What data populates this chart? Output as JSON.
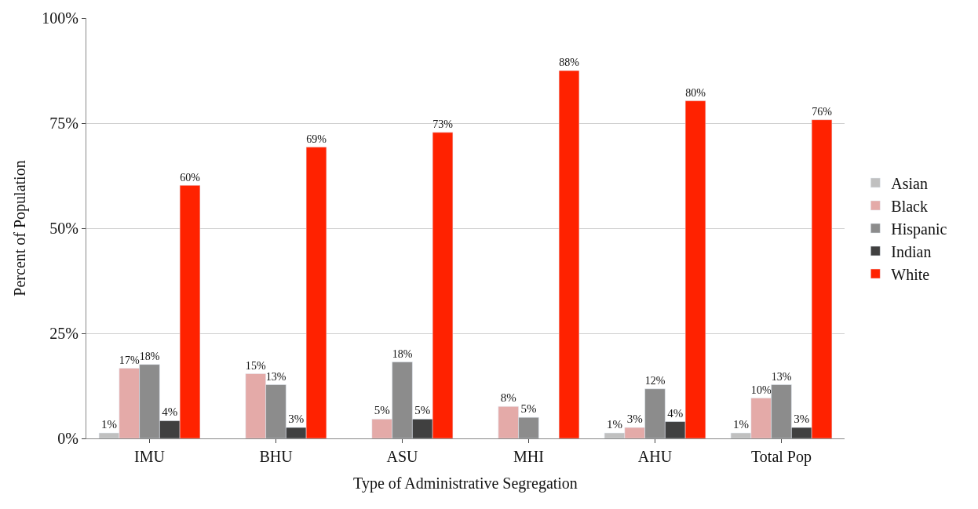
{
  "chart_data": {
    "type": "bar",
    "xlabel": "Type of Administrative Segregation",
    "ylabel": "Percent of Population",
    "categories": [
      "IMU",
      "BHU",
      "ASU",
      "MHI",
      "AHU",
      "Total Pop"
    ],
    "series": [
      {
        "name": "Asian",
        "color": "#c0c0c0",
        "values": [
          1.3,
          null,
          null,
          null,
          1.3,
          1.3
        ],
        "value_labels": [
          "1%",
          null,
          null,
          null,
          "1%",
          "1%"
        ]
      },
      {
        "name": "Black",
        "color": "#e4aaa8",
        "values": [
          16.7,
          15.4,
          4.6,
          7.6,
          2.6,
          9.6
        ],
        "value_labels": [
          "17%",
          "15%",
          "5%",
          "8%",
          "3%",
          "10%"
        ]
      },
      {
        "name": "Hispanic",
        "color": "#8c8c8c",
        "values": [
          17.6,
          12.8,
          18.2,
          5.0,
          11.8,
          12.8
        ],
        "value_labels": [
          "18%",
          "13%",
          "18%",
          "5%",
          "12%",
          "13%"
        ]
      },
      {
        "name": "Indian",
        "color": "#404040",
        "values": [
          4.2,
          2.6,
          4.6,
          null,
          4.0,
          2.6
        ],
        "value_labels": [
          "4%",
          "3%",
          "5%",
          null,
          "4%",
          "3%"
        ]
      },
      {
        "name": "White",
        "color": "#ff2200",
        "values": [
          60.2,
          69.3,
          72.8,
          87.5,
          80.3,
          75.8
        ],
        "value_labels": [
          "60%",
          "69%",
          "73%",
          "88%",
          "80%",
          "76%"
        ]
      }
    ],
    "ylim": [
      0,
      100
    ],
    "yticks": [
      {
        "value": 0,
        "label": "0%"
      },
      {
        "value": 25,
        "label": "25%"
      },
      {
        "value": 50,
        "label": "50%"
      },
      {
        "value": 75,
        "label": "75%"
      },
      {
        "value": 100,
        "label": "100%"
      }
    ],
    "grid": "y",
    "legend": "right"
  }
}
